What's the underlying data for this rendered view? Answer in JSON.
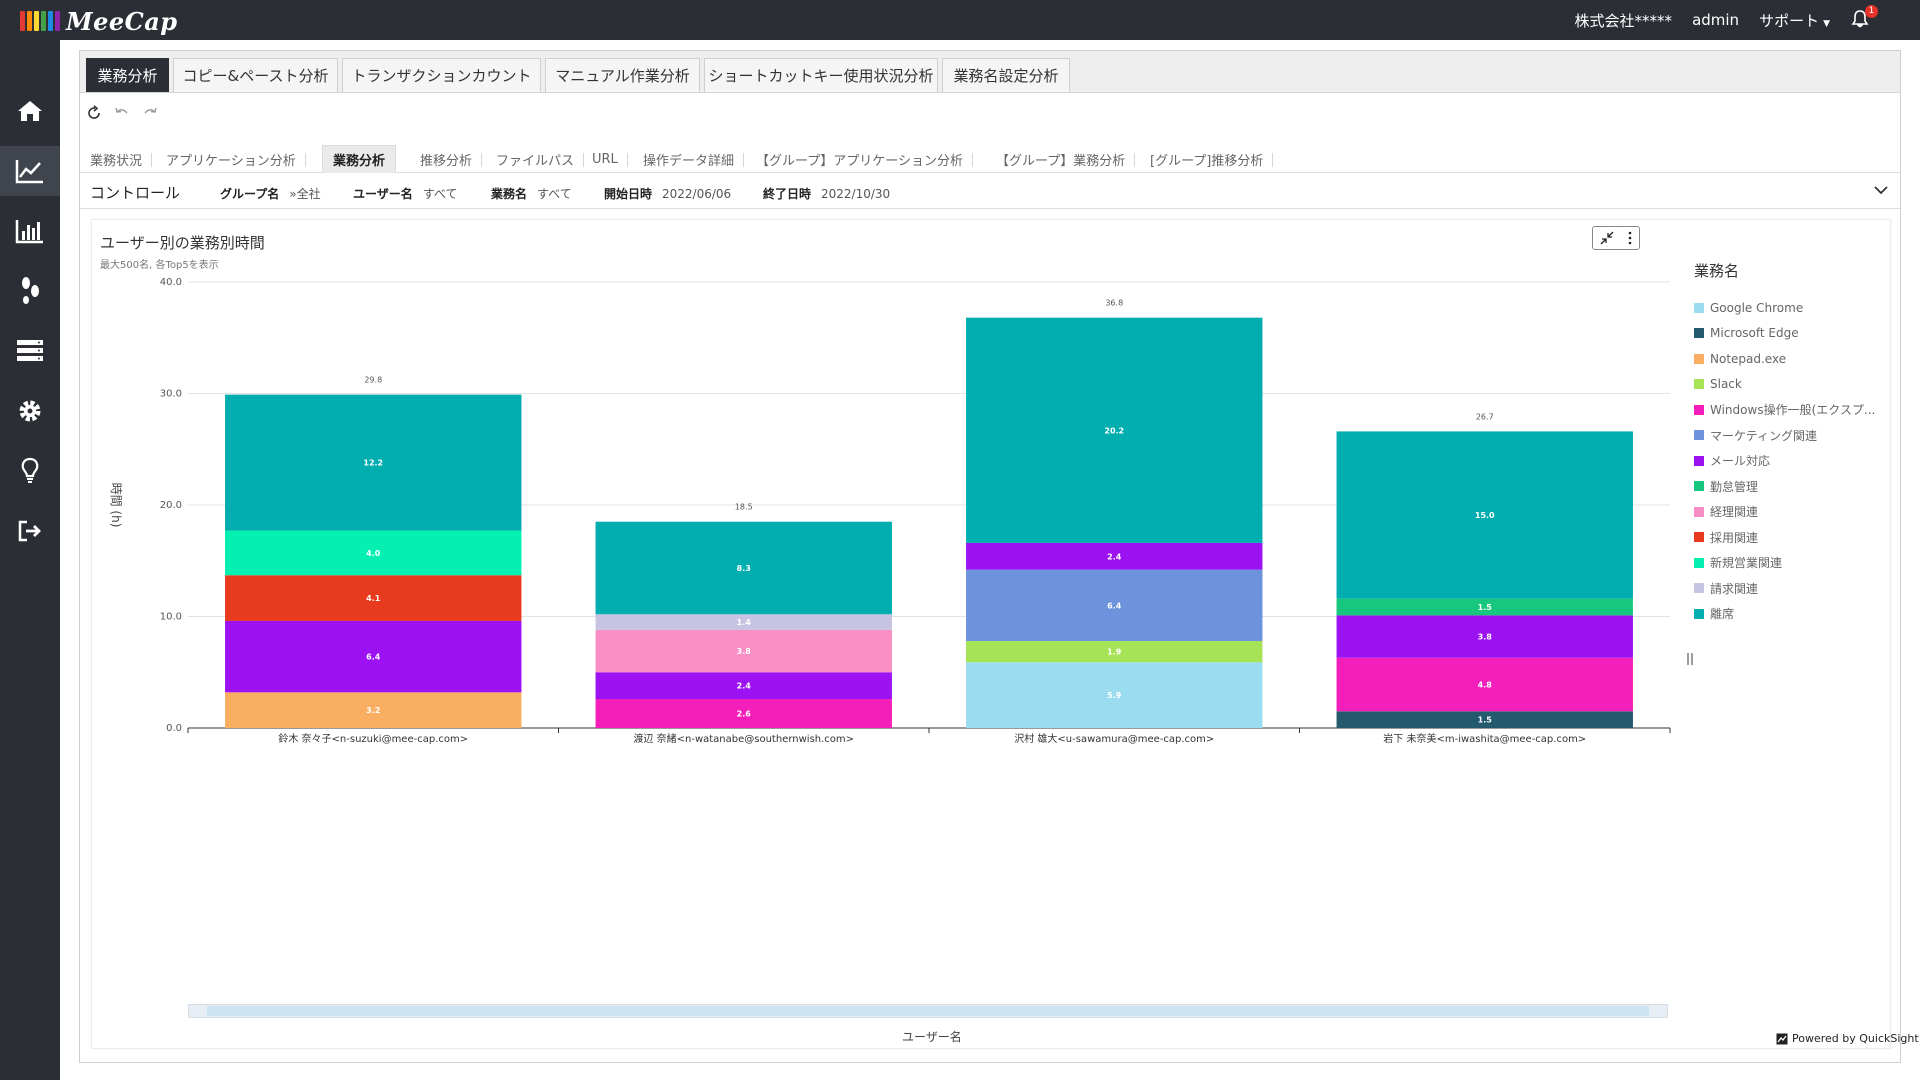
{
  "app": {
    "logo_text": "MeeCap",
    "logo_colors": [
      "#e53935",
      "#fb8c00",
      "#fdd835",
      "#43a047",
      "#1e88e5",
      "#8e24aa"
    ],
    "company": "株式会社*****",
    "user": "admin",
    "support": "サポート",
    "notification_count": "1"
  },
  "sidebar": {
    "items": [
      {
        "icon": "home-icon",
        "active": false
      },
      {
        "icon": "trend-chart-icon",
        "active": true
      },
      {
        "icon": "bar-chart-icon",
        "active": false
      },
      {
        "icon": "footsteps-icon",
        "active": false
      },
      {
        "icon": "server-list-icon",
        "active": false
      },
      {
        "icon": "gear-icon",
        "active": false
      },
      {
        "icon": "lightbulb-icon",
        "active": false
      },
      {
        "icon": "logout-icon",
        "active": false
      }
    ]
  },
  "tabs": [
    {
      "label": "業務分析",
      "active": true
    },
    {
      "label": "コピー&ペースト分析",
      "active": false
    },
    {
      "label": "トランザクションカウント",
      "active": false
    },
    {
      "label": "マニュアル作業分析",
      "active": false
    },
    {
      "label": "ショートカットキー使用状況分析",
      "active": false
    },
    {
      "label": "業務名設定分析",
      "active": false
    }
  ],
  "subtabs": [
    {
      "label": "業務状況",
      "active": false
    },
    {
      "label": "アプリケーション分析",
      "active": false
    },
    {
      "label": "業務分析",
      "active": true
    },
    {
      "label": "推移分析",
      "active": false
    },
    {
      "label": "ファイルパス",
      "active": false
    },
    {
      "label": "URL",
      "active": false
    },
    {
      "label": "操作データ詳細",
      "active": false
    },
    {
      "label": "【グループ】アプリケーション分析",
      "active": false
    },
    {
      "label": "【グループ】業務分析",
      "active": false
    },
    {
      "label": "[グループ]推移分析",
      "active": false
    }
  ],
  "controls": {
    "title": "コントロール",
    "filters": [
      {
        "label": "グループ名",
        "value": "»全社"
      },
      {
        "label": "ユーザー名",
        "value": "すべて"
      },
      {
        "label": "業務名",
        "value": "すべて"
      },
      {
        "label": "開始日時",
        "value": "2022/06/06"
      },
      {
        "label": "終了日時",
        "value": "2022/10/30"
      }
    ]
  },
  "card": {
    "title": "ユーザー別の業務別時間",
    "subtitle": "最大500名, 各Top5を表示",
    "powered": "Powered by QuickSight"
  },
  "chart_data": {
    "type": "bar",
    "stacked": true,
    "ylabel": "時間 (h)",
    "xlabel": "ユーザー名",
    "ylim": [
      0,
      40
    ],
    "yticks": [
      "0.0",
      "10.0",
      "20.0",
      "30.0",
      "40.0"
    ],
    "legend_title": "業務名",
    "legend_position": "right",
    "categories": [
      "鈴木 奈々子<n-suzuki@mee-cap.com>",
      "渡辺 奈緒<n-watanabe@southernwish.com>",
      "沢村 雄大<u-sawamura@mee-cap.com>",
      "岩下 未奈美<m-iwashita@mee-cap.com>"
    ],
    "totals": [
      "29.8",
      "18.5",
      "36.8",
      "26.7"
    ],
    "series": [
      {
        "name": "Google Chrome",
        "color": "#9cdcf0",
        "values": [
          0,
          0,
          5.9,
          0
        ]
      },
      {
        "name": "Microsoft Edge",
        "color": "#245a6e",
        "values": [
          0,
          0,
          0,
          1.5
        ]
      },
      {
        "name": "Notepad.exe",
        "color": "#f9ae61",
        "values": [
          3.2,
          0,
          0,
          0
        ]
      },
      {
        "name": "Slack",
        "color": "#a7e356",
        "values": [
          0,
          0,
          1.9,
          0
        ]
      },
      {
        "name": "Windows操作一般(エクスプ...",
        "color": "#f41fba",
        "values": [
          0,
          2.6,
          0,
          4.8
        ]
      },
      {
        "name": "マーケティング関連",
        "color": "#6c93dc",
        "values": [
          0,
          0,
          6.4,
          0
        ]
      },
      {
        "name": "メール対応",
        "color": "#9d12f3",
        "values": [
          6.4,
          2.4,
          2.4,
          3.8
        ]
      },
      {
        "name": "勤怠管理",
        "color": "#17c77d",
        "values": [
          0,
          0,
          0,
          1.5
        ]
      },
      {
        "name": "経理関連",
        "color": "#f88ec4",
        "values": [
          0,
          3.8,
          0,
          0
        ]
      },
      {
        "name": "採用関連",
        "color": "#e73a1e",
        "values": [
          4.1,
          0,
          0,
          0
        ]
      },
      {
        "name": "新規営業関連",
        "color": "#04f0b2",
        "values": [
          4.0,
          0,
          0,
          0
        ]
      },
      {
        "name": "請求関連",
        "color": "#c6c4e2",
        "values": [
          0,
          1.4,
          0,
          0
        ]
      },
      {
        "name": "離席",
        "color": "#00aeb0",
        "values": [
          12.2,
          8.3,
          20.2,
          15.0
        ]
      }
    ]
  }
}
